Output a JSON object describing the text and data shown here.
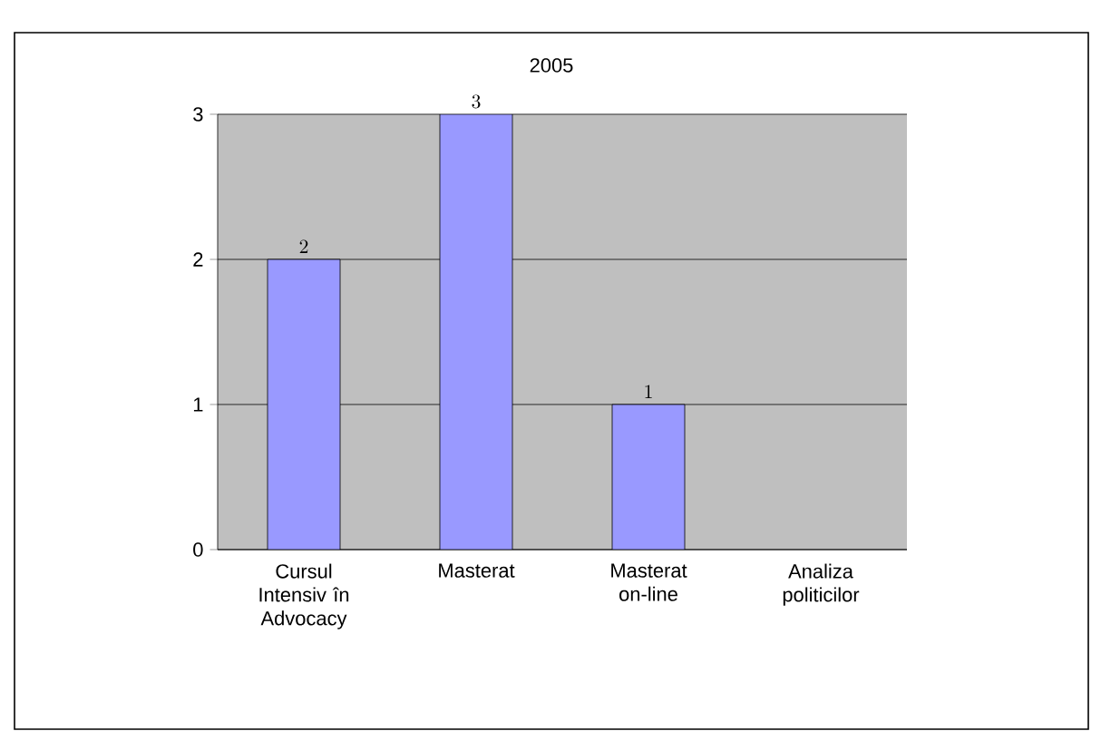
{
  "chart_data": {
    "type": "bar",
    "title": "2005",
    "categories": [
      "Cursul Intensiv în Advocacy",
      "Masterat",
      "Masterat on-line",
      "Analiza politicilor"
    ],
    "values": [
      2,
      3,
      1,
      null
    ],
    "color": "#9999ff",
    "ylim": [
      0,
      3
    ],
    "yticks": [
      0,
      1,
      2,
      3
    ],
    "grid": "y",
    "data_labels": true
  }
}
